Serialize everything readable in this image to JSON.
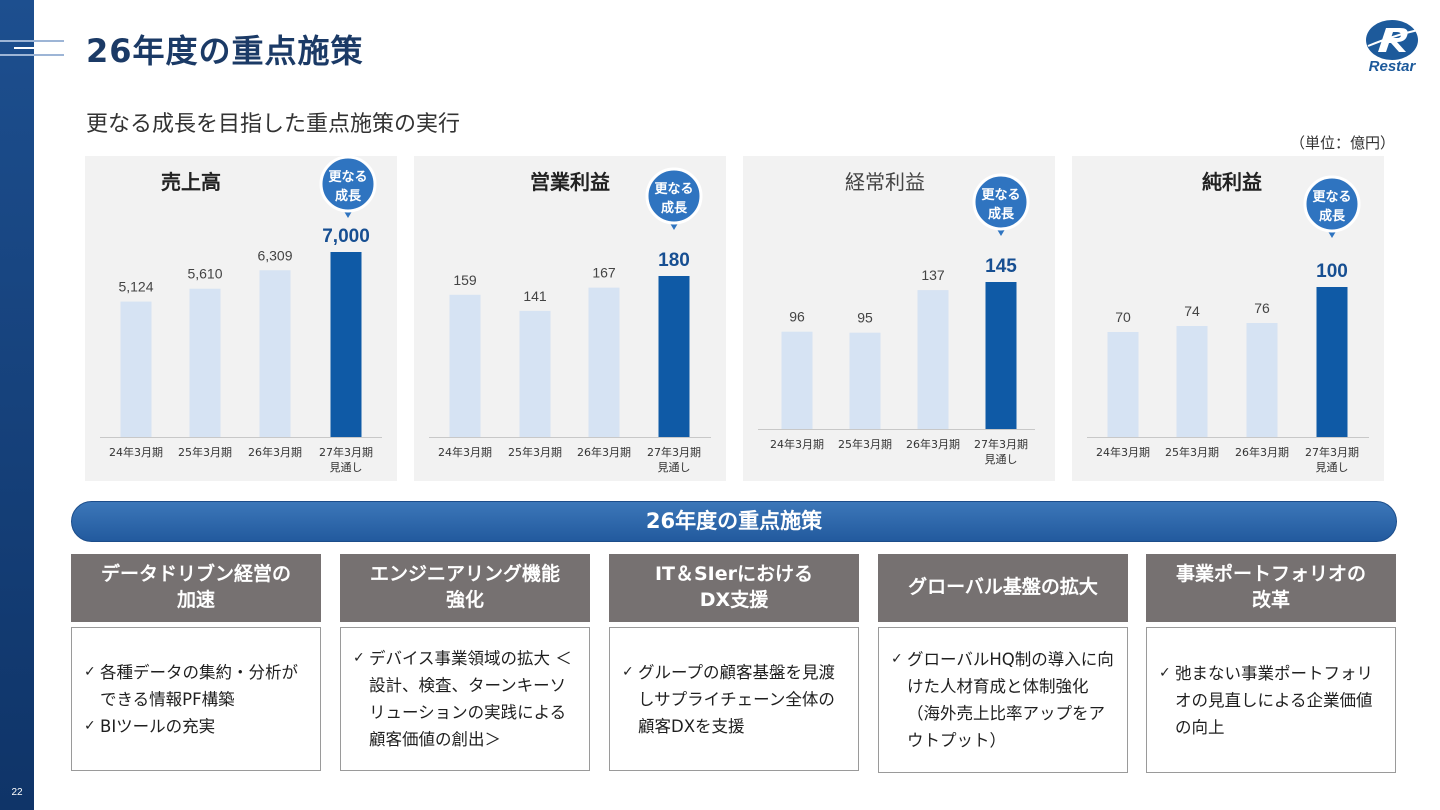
{
  "page": {
    "title": "26年度の重点施策",
    "subtitle": "更なる成長を目指した重点施策の実行",
    "unit": "（単位：億円）",
    "page_number": "22",
    "logo_text": "Restar",
    "accent_color": "#1d4f8f",
    "bar_colors": {
      "past": "#d6e3f3",
      "forecast": "#0f5aa6"
    }
  },
  "chart_data": [
    {
      "type": "bar",
      "title": "売上高",
      "categories": [
        "24年3月期",
        "25年3月期",
        "26年3月期",
        "27年3月期 見通し"
      ],
      "values": [
        5124,
        5610,
        6309,
        7000
      ],
      "labels": [
        "5,124",
        "5,610",
        "6,309",
        "7,000"
      ],
      "badge": "更なる 成長",
      "highlight_index": 3
    },
    {
      "type": "bar",
      "title": "営業利益",
      "categories": [
        "24年3月期",
        "25年3月期",
        "26年3月期",
        "27年3月期 見通し"
      ],
      "values": [
        159,
        141,
        167,
        180
      ],
      "labels": [
        "159",
        "141",
        "167",
        "180"
      ],
      "badge": "更なる 成長",
      "highlight_index": 3
    },
    {
      "type": "bar",
      "title": "経常利益",
      "categories": [
        "24年3月期",
        "25年3月期",
        "26年3月期",
        "27年3月期 見通し"
      ],
      "values": [
        96,
        95,
        137,
        145
      ],
      "labels": [
        "96",
        "95",
        "137",
        "145"
      ],
      "badge": "更なる 成長",
      "highlight_index": 3
    },
    {
      "type": "bar",
      "title": "純利益",
      "categories": [
        "24年3月期",
        "25年3月期",
        "26年3月期",
        "27年3月期 見通し"
      ],
      "values": [
        70,
        74,
        76,
        100
      ],
      "labels": [
        "70",
        "74",
        "76",
        "100"
      ],
      "badge": "更なる 成長",
      "highlight_index": 3
    }
  ],
  "initiatives": {
    "banner": "26年度の重点施策",
    "items": [
      {
        "title": "データドリブン経営の 加速",
        "points": [
          "各種データの集約・分析ができる情報PF構築",
          "BIツールの充実"
        ]
      },
      {
        "title": "エンジニアリング機能 強化",
        "points": [
          "デバイス事業領域の拡大 ＜設計、検査、ターンキーソリューションの実践による顧客価値の創出＞"
        ]
      },
      {
        "title": "IT＆SIerにおける DX支援",
        "points": [
          "グループの顧客基盤を見渡しサプライチェーン全体の顧客DXを支援"
        ]
      },
      {
        "title": "グローバル基盤の拡大",
        "points": [
          "グローバルHQ制の導入に向けた人材育成と体制強化 （海外売上比率アップをアウトプット）"
        ]
      },
      {
        "title": "事業ポートフォリオの 改革",
        "points": [
          "弛まない事業ポートフォリオの見直しによる企業価値の向上"
        ]
      }
    ]
  }
}
